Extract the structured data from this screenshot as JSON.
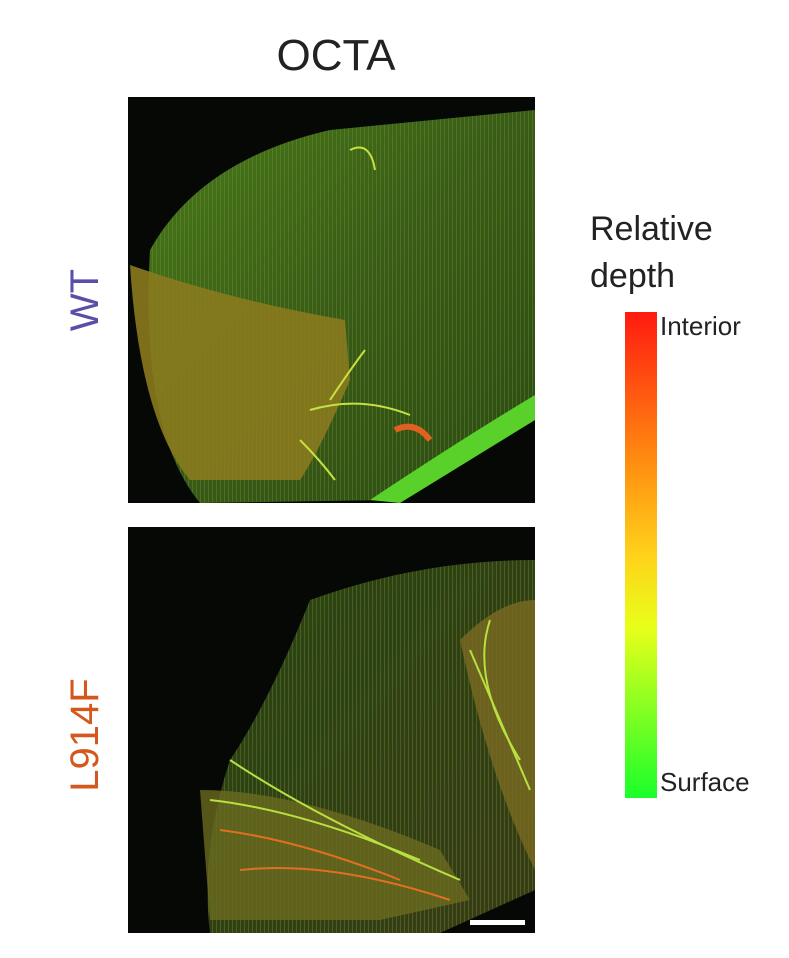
{
  "title": "OCTA",
  "panels": [
    {
      "label": "WT"
    },
    {
      "label": "L914F"
    }
  ],
  "colorbar": {
    "title_lines": [
      "Relative",
      "depth"
    ],
    "top_label": "Interior",
    "bottom_label": "Surface"
  }
}
